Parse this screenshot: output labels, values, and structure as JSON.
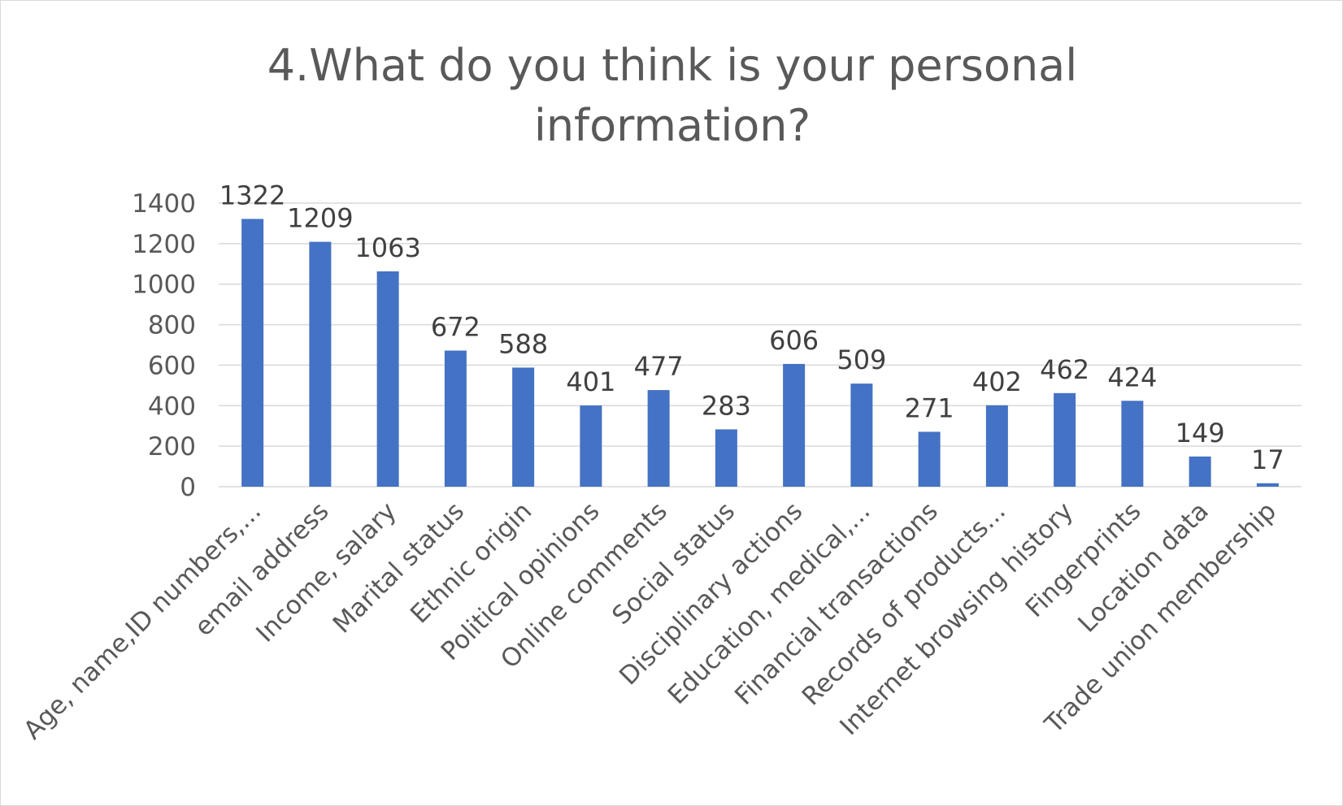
{
  "chart_data": {
    "type": "bar",
    "title_lines": [
      "4.What do you think is your personal",
      "information?"
    ],
    "xlabel": "",
    "ylabel": "",
    "ylim": [
      0,
      1400
    ],
    "yticks": [
      0,
      200,
      400,
      600,
      800,
      1000,
      1200,
      1400
    ],
    "grid": true,
    "legend": "none",
    "bar_color": "#4472C4",
    "categories": [
      "Age, name,ID numbers,...",
      "email address",
      "Income, salary",
      "Marital status",
      "Ethnic origin",
      "Political opinions",
      "Online comments",
      "Social status",
      "Disciplinary actions",
      "Education, medical,...",
      "Financial transactions",
      "Records of products...",
      "Internet browsing history",
      "Fingerprints",
      "Location data",
      "Trade union membership"
    ],
    "values": [
      1322,
      1209,
      1063,
      672,
      588,
      401,
      477,
      283,
      606,
      509,
      271,
      402,
      462,
      424,
      149,
      17
    ]
  }
}
